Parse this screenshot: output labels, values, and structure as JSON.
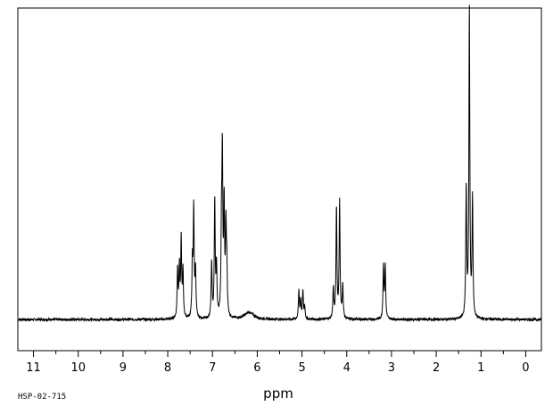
{
  "sample_label": "HSP-02-715",
  "chart_data": {
    "type": "line",
    "title": "",
    "xlabel": "ppm",
    "ylabel": "",
    "xlim": [
      11.35,
      -0.35
    ],
    "ylim": [
      -0.1,
      1.0
    ],
    "x_reversed": true,
    "grid": false,
    "baseline": 0.0,
    "major_ticks": [
      11,
      10,
      9,
      8,
      7,
      6,
      5,
      4,
      3,
      2,
      1,
      0
    ],
    "tick_labels": [
      "11",
      "10",
      "9",
      "8",
      "7",
      "6",
      "5",
      "4",
      "3",
      "2",
      "1",
      "0"
    ],
    "minor_tick_step": 0.5,
    "series": [
      {
        "peaks": [
          {
            "ppm": 7.78,
            "height": 0.16
          },
          {
            "ppm": 7.74,
            "height": 0.16
          },
          {
            "ppm": 7.7,
            "height": 0.25
          },
          {
            "ppm": 7.66,
            "height": 0.15
          },
          {
            "ppm": 7.45,
            "height": 0.17
          },
          {
            "ppm": 7.42,
            "height": 0.35
          },
          {
            "ppm": 7.38,
            "height": 0.15
          },
          {
            "ppm": 7.02,
            "height": 0.18
          },
          {
            "ppm": 6.95,
            "height": 0.38
          },
          {
            "ppm": 6.91,
            "height": 0.16
          },
          {
            "ppm": 6.8,
            "height": 0.25
          },
          {
            "ppm": 6.78,
            "height": 0.5
          },
          {
            "ppm": 6.74,
            "height": 0.35
          },
          {
            "ppm": 6.7,
            "height": 0.27
          },
          {
            "ppm": 6.68,
            "height": 0.14
          },
          {
            "ppm": 5.07,
            "height": 0.09
          },
          {
            "ppm": 5.03,
            "height": 0.06
          },
          {
            "ppm": 4.98,
            "height": 0.09
          },
          {
            "ppm": 4.94,
            "height": 0.04
          },
          {
            "ppm": 4.3,
            "height": 0.1
          },
          {
            "ppm": 4.23,
            "height": 0.36
          },
          {
            "ppm": 4.16,
            "height": 0.38
          },
          {
            "ppm": 4.09,
            "height": 0.11
          },
          {
            "ppm": 3.18,
            "height": 0.17
          },
          {
            "ppm": 3.14,
            "height": 0.17
          },
          {
            "ppm": 1.33,
            "height": 0.42
          },
          {
            "ppm": 1.26,
            "height": 1.0
          },
          {
            "ppm": 1.19,
            "height": 0.38
          }
        ],
        "broad_humps": [
          {
            "ppm": 6.18,
            "height": 0.022
          }
        ]
      }
    ]
  }
}
